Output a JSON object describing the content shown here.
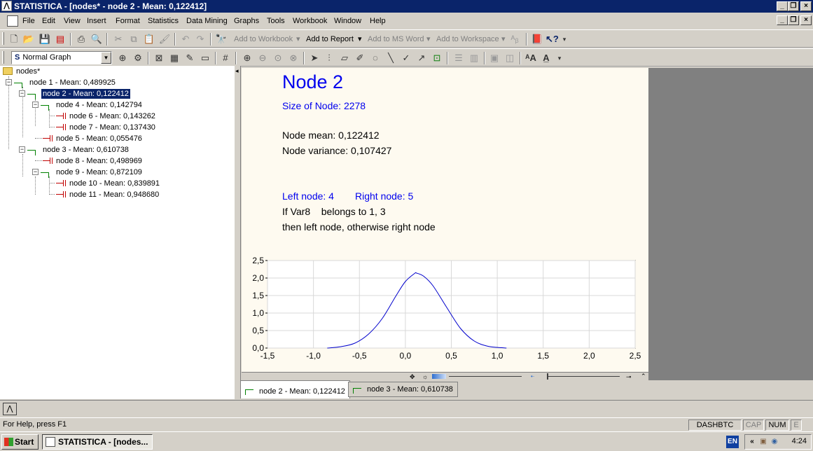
{
  "window": {
    "title": "STATISTICA - [nodes* - node 2 - Mean: 0,122412]",
    "controls": {
      "minimize": "_",
      "restore": "❐",
      "close": "×"
    }
  },
  "menu": {
    "items": [
      "File",
      "Edit",
      "View",
      "Insert",
      "Format",
      "Statistics",
      "Data Mining",
      "Graphs",
      "Tools",
      "Workbook",
      "Window",
      "Help"
    ]
  },
  "toolbar1": {
    "add_to_workbook": "Add to Workbook",
    "add_to_report": "Add to Report",
    "add_to_ms_word": "Add to MS Word",
    "add_to_workspace": "Add to Workspace"
  },
  "toolbar2": {
    "graph_type": "Normal Graph",
    "graph_type_prefix": "S"
  },
  "tree": {
    "root": "nodes*",
    "nodes": [
      {
        "label": "node 1 - Mean: 0,489925",
        "type": "branch"
      },
      {
        "label": "node 2 - Mean: 0,122412",
        "type": "branch",
        "selected": true
      },
      {
        "label": "node 4 - Mean: 0,142794",
        "type": "branch"
      },
      {
        "label": "node 6 - Mean: 0,143262",
        "type": "leaf"
      },
      {
        "label": "node 7 - Mean: 0,137430",
        "type": "leaf"
      },
      {
        "label": "node 5 - Mean: 0,055476",
        "type": "leaf"
      },
      {
        "label": "node 3 - Mean: 0,610738",
        "type": "branch"
      },
      {
        "label": "node 8 - Mean: 0,498969",
        "type": "leaf"
      },
      {
        "label": "node 9 - Mean: 0,872109",
        "type": "branch"
      },
      {
        "label": "node 10 - Mean: 0,839891",
        "type": "leaf"
      },
      {
        "label": "node 11 - Mean: 0,948680",
        "type": "leaf"
      }
    ]
  },
  "document": {
    "title": "Node 2",
    "size": "Size of Node: 2278",
    "mean": "Node mean: 0,122412",
    "variance": "Node variance: 0,107427",
    "left_node": "Left node: 4",
    "right_node": "Right node: 5",
    "rule_if": "If Var8    belongs to 1, 3",
    "rule_then": "then left node, otherwise right node"
  },
  "chart_data": {
    "type": "line",
    "x_ticks": [
      "-1,5",
      "-1,0",
      "-0,5",
      "0,0",
      "0,5",
      "1,0",
      "1,5",
      "2,0",
      "2,5"
    ],
    "y_ticks": [
      "0,0",
      "0,5",
      "1,0",
      "1,5",
      "2,0",
      "2,5"
    ],
    "xlim": [
      -1.5,
      2.5
    ],
    "ylim": [
      0,
      2.5
    ],
    "grid": true,
    "series": [
      {
        "x": [
          -0.85,
          -0.7,
          -0.55,
          -0.4,
          -0.25,
          -0.1,
          0.0,
          0.1,
          0.122,
          0.2,
          0.3,
          0.45,
          0.6,
          0.75,
          0.9,
          1.05,
          1.1
        ],
        "y": [
          0.0,
          0.04,
          0.14,
          0.4,
          0.85,
          1.5,
          1.9,
          2.13,
          2.14,
          2.05,
          1.78,
          1.16,
          0.56,
          0.2,
          0.05,
          0.01,
          0.0
        ]
      }
    ],
    "line_color": "#0000cc"
  },
  "tabs": [
    {
      "label": "node 2 - Mean: 0,122412",
      "active": true
    },
    {
      "label": "node 3 - Mean: 0,610738",
      "active": false
    }
  ],
  "status": {
    "help": "For Help, press F1",
    "dashbtc": "DASHBTC",
    "cap": "CAP",
    "num": "NUM",
    "e": "E"
  },
  "taskbar": {
    "start": "Start",
    "task": "STATISTICA - [nodes...",
    "lang": "EN",
    "clock": "4:24",
    "tray_arrow": "«"
  }
}
